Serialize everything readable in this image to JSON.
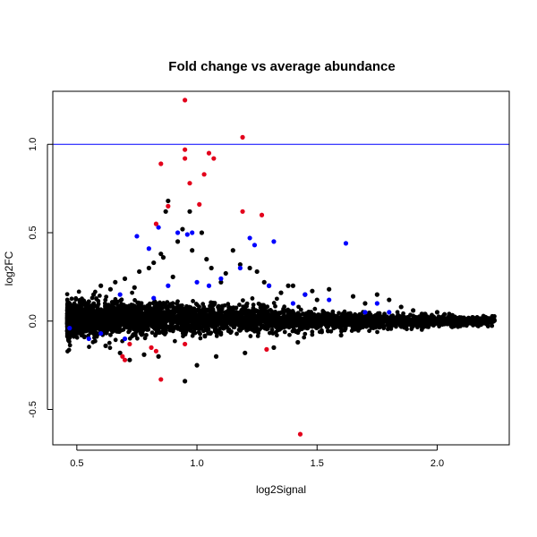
{
  "chart_data": {
    "type": "scatter",
    "title": "Fold change vs average abundance",
    "xlabel": "log2Signal",
    "ylabel": "log2FC",
    "xlim": [
      0.4,
      2.3
    ],
    "ylim": [
      -0.7,
      1.3
    ],
    "x_ticks": [
      0.5,
      1.0,
      1.5,
      2.0
    ],
    "x_tick_labels": [
      "0.5",
      "1.0",
      "1.5",
      "2.0"
    ],
    "y_ticks": [
      -0.5,
      0.0,
      0.5,
      1.0
    ],
    "y_tick_labels": [
      "-0.5",
      "0.0",
      "0.5",
      "1.0"
    ],
    "reference_lines": [
      {
        "axis": "y",
        "value": 1.0,
        "color": "#0000ff"
      }
    ],
    "grid": false,
    "series": [
      {
        "color": "#000000",
        "points": [
          [
            0.47,
            0.02
          ],
          [
            0.48,
            -0.03
          ],
          [
            0.5,
            0.05
          ],
          [
            0.52,
            -0.08
          ],
          [
            0.55,
            0.11
          ],
          [
            0.57,
            0.15
          ],
          [
            0.6,
            0.2
          ],
          [
            0.62,
            -0.14
          ],
          [
            0.64,
            0.18
          ],
          [
            0.66,
            0.22
          ],
          [
            0.68,
            -0.18
          ],
          [
            0.7,
            0.24
          ],
          [
            0.72,
            -0.22
          ],
          [
            0.74,
            0.19
          ],
          [
            0.76,
            0.28
          ],
          [
            0.78,
            -0.19
          ],
          [
            0.8,
            0.3
          ],
          [
            0.82,
            0.33
          ],
          [
            0.84,
            -0.2
          ],
          [
            0.85,
            0.38
          ],
          [
            0.86,
            0.36
          ],
          [
            0.87,
            0.62
          ],
          [
            0.88,
            0.68
          ],
          [
            0.9,
            0.25
          ],
          [
            0.92,
            0.45
          ],
          [
            0.94,
            0.52
          ],
          [
            0.95,
            -0.34
          ],
          [
            0.97,
            0.62
          ],
          [
            0.98,
            0.4
          ],
          [
            1.0,
            -0.25
          ],
          [
            1.02,
            0.5
          ],
          [
            1.04,
            0.35
          ],
          [
            1.06,
            0.3
          ],
          [
            1.08,
            -0.2
          ],
          [
            1.1,
            0.22
          ],
          [
            1.12,
            0.27
          ],
          [
            1.15,
            0.4
          ],
          [
            1.18,
            0.32
          ],
          [
            1.2,
            -0.18
          ],
          [
            1.22,
            0.3
          ],
          [
            1.25,
            0.28
          ],
          [
            1.28,
            0.22
          ],
          [
            1.3,
            0.2
          ],
          [
            1.32,
            -0.15
          ],
          [
            1.35,
            0.16
          ],
          [
            1.38,
            0.2
          ],
          [
            1.4,
            0.2
          ],
          [
            1.42,
            -0.12
          ],
          [
            1.45,
            0.15
          ],
          [
            1.48,
            0.17
          ],
          [
            1.5,
            0.12
          ],
          [
            1.55,
            0.18
          ],
          [
            1.6,
            -0.08
          ],
          [
            1.65,
            0.14
          ],
          [
            1.7,
            0.1
          ],
          [
            1.75,
            0.15
          ],
          [
            1.8,
            0.12
          ],
          [
            1.85,
            0.08
          ],
          [
            1.9,
            0.06
          ],
          [
            1.95,
            0.04
          ],
          [
            2.0,
            0.05
          ],
          [
            2.05,
            0.04
          ],
          [
            2.1,
            0.02
          ],
          [
            2.15,
            0.02
          ],
          [
            2.2,
            0.01
          ],
          [
            2.23,
            0.0
          ]
        ]
      },
      {
        "color": "#0000ff",
        "points": [
          [
            0.47,
            -0.04
          ],
          [
            0.55,
            -0.1
          ],
          [
            0.6,
            -0.07
          ],
          [
            0.68,
            0.15
          ],
          [
            0.7,
            -0.1
          ],
          [
            0.75,
            0.48
          ],
          [
            0.8,
            0.41
          ],
          [
            0.82,
            0.13
          ],
          [
            0.84,
            0.53
          ],
          [
            0.88,
            0.2
          ],
          [
            0.92,
            0.5
          ],
          [
            0.96,
            0.49
          ],
          [
            0.98,
            0.5
          ],
          [
            1.0,
            0.22
          ],
          [
            1.05,
            0.2
          ],
          [
            1.1,
            0.24
          ],
          [
            1.18,
            0.3
          ],
          [
            1.22,
            0.47
          ],
          [
            1.24,
            0.43
          ],
          [
            1.3,
            0.2
          ],
          [
            1.32,
            0.45
          ],
          [
            1.4,
            0.1
          ],
          [
            1.45,
            0.15
          ],
          [
            1.55,
            0.12
          ],
          [
            1.62,
            0.44
          ],
          [
            1.7,
            0.05
          ],
          [
            1.75,
            0.1
          ],
          [
            1.8,
            0.05
          ]
        ]
      },
      {
        "color": "#e3001b",
        "points": [
          [
            0.95,
            1.25
          ],
          [
            1.19,
            1.04
          ],
          [
            0.95,
            0.97
          ],
          [
            0.95,
            0.92
          ],
          [
            1.05,
            0.95
          ],
          [
            1.07,
            0.92
          ],
          [
            0.85,
            0.89
          ],
          [
            1.03,
            0.83
          ],
          [
            0.97,
            0.78
          ],
          [
            1.01,
            0.66
          ],
          [
            0.88,
            0.65
          ],
          [
            1.19,
            0.62
          ],
          [
            1.27,
            0.6
          ],
          [
            0.83,
            0.55
          ],
          [
            0.85,
            -0.33
          ],
          [
            1.43,
            -0.64
          ],
          [
            0.69,
            -0.2
          ],
          [
            0.7,
            -0.22
          ],
          [
            0.81,
            -0.15
          ],
          [
            0.83,
            -0.17
          ],
          [
            0.95,
            -0.13
          ],
          [
            1.29,
            -0.16
          ],
          [
            0.72,
            -0.13
          ]
        ]
      }
    ],
    "background_cloud": {
      "color": "#000000",
      "note_shape": "dense band centered near y=0, wide at low x, tapering toward high x",
      "x_range": [
        0.46,
        2.24
      ]
    }
  }
}
